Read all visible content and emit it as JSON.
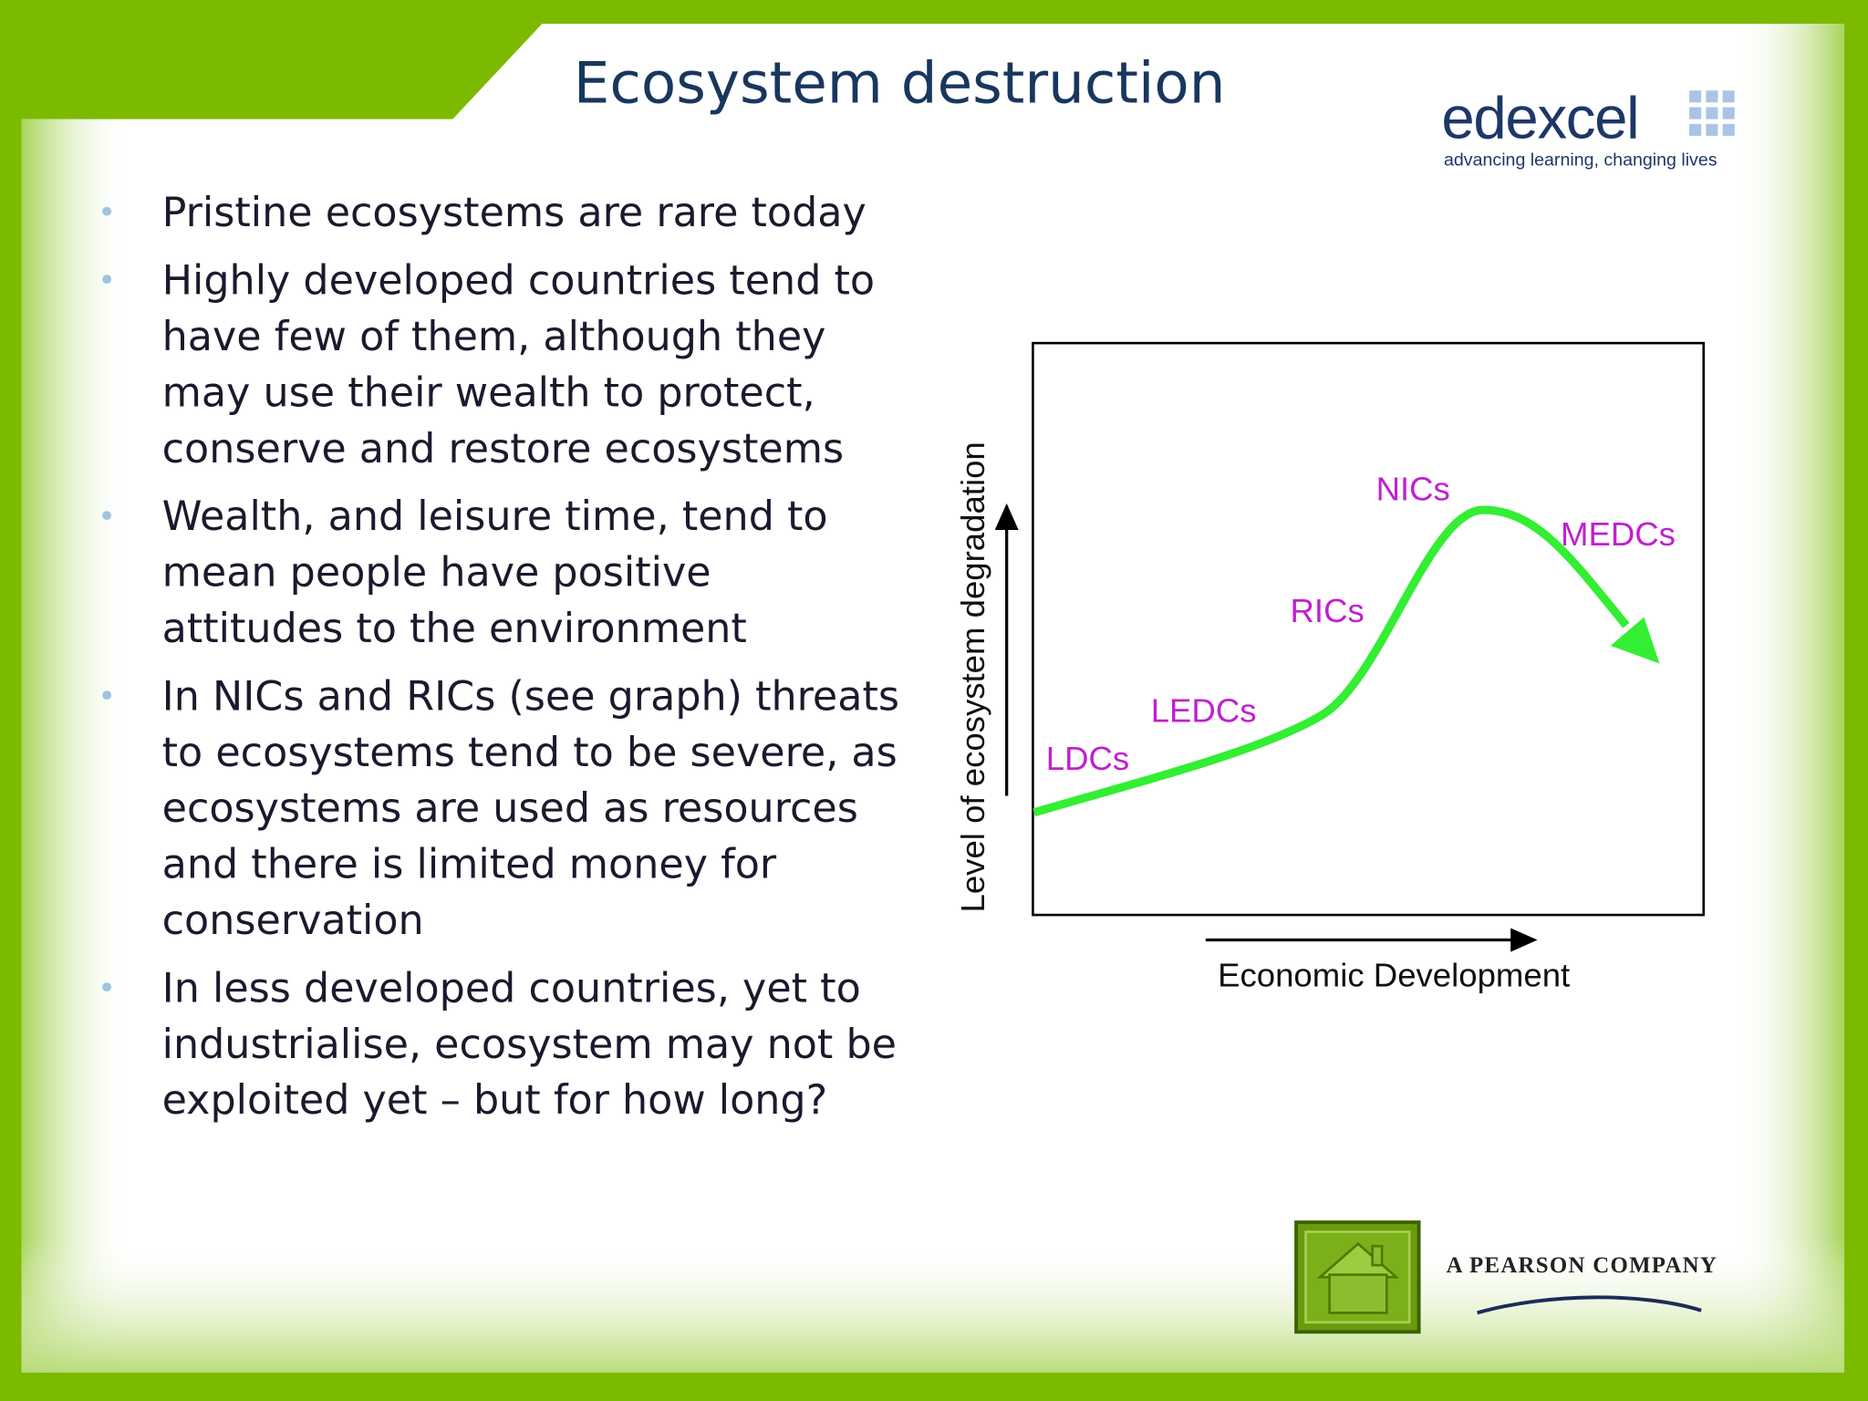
{
  "header": {
    "title": "Ecosystem destruction"
  },
  "logo": {
    "name": "edexcel",
    "tagline": "advancing learning, changing lives"
  },
  "bullets": [
    "Pristine ecosystems are rare today",
    "Highly developed countries tend to have few of them, although they may use their wealth to protect, conserve and restore ecosystems",
    "Wealth, and leisure time, tend to mean people have positive attitudes to the environment",
    "In NICs and RICs (see graph) threats to ecosystems tend to be severe, as ecosystems are used as resources and there is limited money for conservation",
    "In less developed countries, yet to industrialise, ecosystem may not be exploited yet – but for how long?"
  ],
  "figure": {
    "y_axis_label": "Level of ecosystem degradation",
    "x_axis_label": "Economic Development",
    "labels": [
      "LDCs",
      "LEDCs",
      "RICs",
      "NICs",
      "MEDCs"
    ]
  },
  "footer": {
    "company": "A PEARSON COMPANY"
  }
}
